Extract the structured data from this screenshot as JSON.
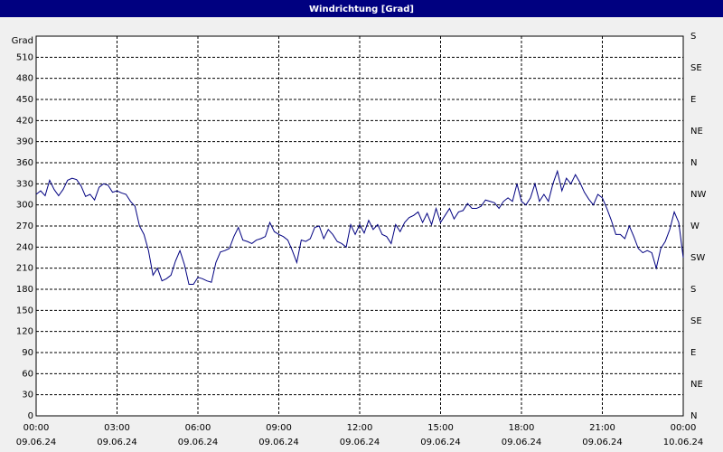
{
  "chart_data": {
    "type": "line",
    "title": "Windrichtung [Grad]",
    "ylabel": "Grad",
    "x": [
      0,
      10,
      20,
      30,
      40,
      50,
      60,
      70,
      80,
      90,
      100,
      110,
      120,
      130,
      140,
      150,
      160,
      170,
      180,
      190,
      200,
      210,
      220,
      230,
      240,
      250,
      260,
      270,
      280,
      290,
      300,
      310,
      320,
      330,
      340,
      350,
      360,
      370,
      380,
      390,
      400,
      410,
      420,
      430,
      440,
      450,
      460,
      470,
      480,
      490,
      500,
      510,
      520,
      530,
      540,
      550,
      560,
      570,
      580,
      590,
      600,
      610,
      620,
      630,
      640,
      650,
      660,
      670,
      680,
      690,
      700,
      710,
      720,
      730,
      740,
      750,
      760,
      770,
      780,
      790,
      800,
      810,
      820,
      830,
      840,
      850,
      860,
      870,
      880,
      890,
      900,
      910,
      920,
      930,
      940,
      950,
      960,
      970,
      980,
      990,
      1000,
      1010,
      1020,
      1030,
      1040,
      1050,
      1060,
      1070,
      1080,
      1090,
      1100,
      1110,
      1120,
      1130,
      1140,
      1150,
      1160,
      1170,
      1180,
      1190,
      1200,
      1210,
      1220,
      1230,
      1240,
      1250,
      1260,
      1270,
      1280,
      1290,
      1300,
      1310,
      1320,
      1330,
      1340,
      1350,
      1360,
      1370,
      1380,
      1390,
      1400,
      1410,
      1420,
      1430,
      1440
    ],
    "values": [
      315,
      320,
      313,
      335,
      322,
      313,
      322,
      335,
      338,
      336,
      327,
      312,
      315,
      307,
      325,
      330,
      328,
      318,
      320,
      317,
      315,
      305,
      298,
      270,
      258,
      235,
      200,
      210,
      192,
      195,
      200,
      220,
      235,
      215,
      187,
      187,
      197,
      195,
      192,
      190,
      218,
      233,
      235,
      238,
      255,
      268,
      250,
      248,
      245,
      250,
      252,
      255,
      275,
      262,
      258,
      255,
      250,
      235,
      218,
      250,
      248,
      252,
      268,
      270,
      252,
      265,
      258,
      248,
      245,
      240,
      272,
      258,
      272,
      260,
      278,
      265,
      272,
      258,
      255,
      245,
      272,
      262,
      275,
      282,
      285,
      290,
      275,
      288,
      272,
      295,
      275,
      285,
      295,
      280,
      290,
      292,
      302,
      295,
      295,
      298,
      307,
      305,
      303,
      295,
      305,
      310,
      305,
      330,
      305,
      300,
      310,
      330,
      305,
      315,
      305,
      330,
      348,
      320,
      338,
      330,
      343,
      332,
      318,
      308,
      300,
      315,
      310,
      295,
      278,
      258,
      258,
      252,
      270,
      255,
      238,
      232,
      235,
      232,
      210,
      238,
      248,
      265,
      290,
      275,
      225
    ],
    "color": "#000080",
    "xlim": [
      0,
      1440
    ],
    "xticks": [
      {
        "value": 0,
        "label": "00:00",
        "sublabel": "09.06.24"
      },
      {
        "value": 180,
        "label": "03:00",
        "sublabel": "09.06.24"
      },
      {
        "value": 360,
        "label": "06:00",
        "sublabel": "09.06.24"
      },
      {
        "value": 540,
        "label": "09:00",
        "sublabel": "09.06.24"
      },
      {
        "value": 720,
        "label": "12:00",
        "sublabel": "09.06.24"
      },
      {
        "value": 900,
        "label": "15:00",
        "sublabel": "09.06.24"
      },
      {
        "value": 1080,
        "label": "18:00",
        "sublabel": "09.06.24"
      },
      {
        "value": 1260,
        "label": "21:00",
        "sublabel": "09.06.24"
      },
      {
        "value": 1440,
        "label": "00:00",
        "sublabel": "10.06.24"
      }
    ],
    "ylim": [
      0,
      540
    ],
    "yticks": [
      0,
      30,
      60,
      90,
      120,
      150,
      180,
      210,
      240,
      270,
      300,
      330,
      360,
      390,
      420,
      450,
      480,
      510
    ],
    "y2lim": [
      0,
      540
    ],
    "y2ticks": [
      {
        "value": 0,
        "label": "N"
      },
      {
        "value": 45,
        "label": "NE"
      },
      {
        "value": 90,
        "label": "E"
      },
      {
        "value": 135,
        "label": "SE"
      },
      {
        "value": 180,
        "label": "S"
      },
      {
        "value": 225,
        "label": "SW"
      },
      {
        "value": 270,
        "label": "W"
      },
      {
        "value": 315,
        "label": "NW"
      },
      {
        "value": 360,
        "label": "N"
      },
      {
        "value": 405,
        "label": "NE"
      },
      {
        "value": 450,
        "label": "E"
      },
      {
        "value": 495,
        "label": "SE"
      },
      {
        "value": 540,
        "label": "S"
      }
    ],
    "grid": true
  }
}
